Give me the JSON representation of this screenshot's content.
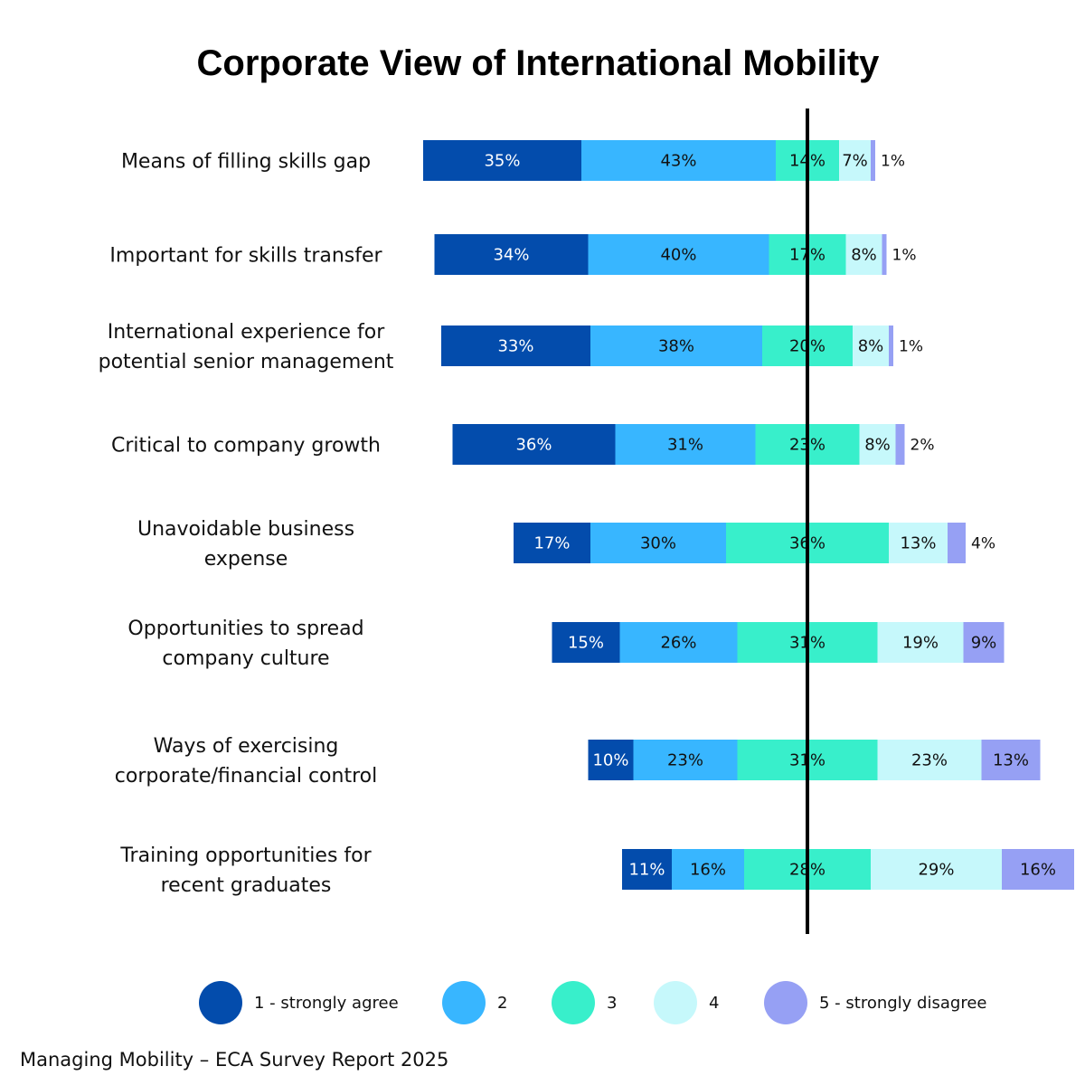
{
  "chart_data": {
    "type": "bar",
    "orientation": "horizontal",
    "stacked": "diverging",
    "title": "Corporate View of International Mobility",
    "categories": [
      [
        "Means of filling skills gap"
      ],
      [
        "Important for skills transfer"
      ],
      [
        "International experience for",
        "potential senior management"
      ],
      [
        "Critical to company growth"
      ],
      [
        "Unavoidable business",
        "expense"
      ],
      [
        "Opportunities to spread",
        "company culture"
      ],
      [
        "Ways of exercising",
        "corporate/financial control"
      ],
      [
        "Training opportunities for",
        "recent graduates"
      ]
    ],
    "series": [
      {
        "name": "1 - strongly agree",
        "color": "#034CAC",
        "values": [
          35,
          34,
          33,
          36,
          17,
          15,
          10,
          11
        ]
      },
      {
        "name": "2",
        "color": "#38B6FF",
        "values": [
          43,
          40,
          38,
          31,
          30,
          26,
          23,
          16
        ]
      },
      {
        "name": "3",
        "color": "#38EFCB",
        "values": [
          14,
          17,
          20,
          23,
          36,
          31,
          31,
          28
        ]
      },
      {
        "name": "4",
        "color": "#C6F8FB",
        "values": [
          7,
          8,
          8,
          8,
          13,
          19,
          23,
          29
        ]
      },
      {
        "name": "5 - strongly disagree",
        "color": "#96A0F4",
        "values": [
          1,
          1,
          1,
          2,
          4,
          9,
          13,
          16
        ]
      }
    ],
    "value_suffix": "%",
    "center_line": "middle of category 3",
    "legend_position": "bottom",
    "grid": false
  },
  "footer": {
    "source": "Managing Mobility – ECA Survey Report 2025"
  }
}
